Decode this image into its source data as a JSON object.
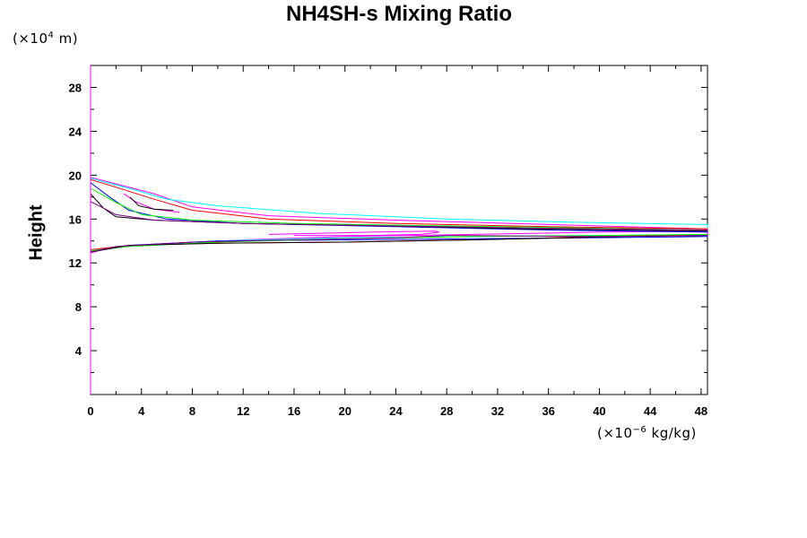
{
  "chart_data": {
    "type": "line",
    "title": "NH4SH-s Mixing Ratio",
    "ylabel": "Height",
    "y_unit": {
      "prefix": "(×10",
      "exp": "4",
      "suffix": " m)"
    },
    "x_unit": {
      "prefix": "(×10",
      "exp": "−6",
      "suffix": " kg/kg)"
    },
    "xlim": [
      0,
      48.5
    ],
    "ylim": [
      0,
      30
    ],
    "xticks": [
      0,
      4,
      8,
      12,
      16,
      20,
      24,
      28,
      32,
      36,
      40,
      44,
      48
    ],
    "yticks": [
      4,
      8,
      12,
      16,
      20,
      24,
      28
    ],
    "series": [
      {
        "color": "#ff00ff",
        "points": [
          [
            0,
            19.8
          ],
          [
            2,
            19.2
          ],
          [
            5,
            18.3
          ],
          [
            8,
            17.1
          ],
          [
            14,
            16.3
          ],
          [
            24,
            15.9
          ],
          [
            36,
            15.5
          ],
          [
            48.5,
            15.1
          ],
          [
            48.5,
            14.9
          ],
          [
            40,
            14.8
          ],
          [
            30,
            14.6
          ],
          [
            20,
            14.4
          ],
          [
            12,
            14.1
          ],
          [
            5,
            13.7
          ],
          [
            1.5,
            13.4
          ],
          [
            0,
            12.9
          ]
        ]
      },
      {
        "color": "#00ffff",
        "points": [
          [
            0,
            19.7
          ],
          [
            3,
            18.8
          ],
          [
            6,
            17.8
          ],
          [
            10,
            17.2
          ],
          [
            18,
            16.5
          ],
          [
            28,
            16.0
          ],
          [
            38,
            15.7
          ],
          [
            48.5,
            15.5
          ],
          [
            48.5,
            14.5
          ],
          [
            40,
            14.5
          ],
          [
            30,
            14.4
          ],
          [
            20,
            14.3
          ],
          [
            10,
            14.0
          ],
          [
            3,
            13.6
          ],
          [
            0,
            13.1
          ]
        ]
      },
      {
        "color": "#ff0000",
        "points": [
          [
            0,
            19.6
          ],
          [
            2,
            18.9
          ],
          [
            5,
            17.8
          ],
          [
            8,
            16.8
          ],
          [
            14,
            16.0
          ],
          [
            24,
            15.6
          ],
          [
            36,
            15.3
          ],
          [
            48.5,
            15.1
          ],
          [
            48.5,
            14.6
          ],
          [
            40,
            14.4
          ],
          [
            30,
            14.1
          ],
          [
            20,
            13.9
          ],
          [
            10,
            13.8
          ],
          [
            3,
            13.6
          ],
          [
            0,
            13.2
          ]
        ]
      },
      {
        "color": "#0000ff",
        "points": [
          [
            0,
            19.3
          ],
          [
            1.5,
            18.0
          ],
          [
            3,
            16.8
          ],
          [
            6,
            16.0
          ],
          [
            12,
            15.6
          ],
          [
            24,
            15.3
          ],
          [
            36,
            15.0
          ],
          [
            48.5,
            14.8
          ],
          [
            48.5,
            14.4
          ],
          [
            40,
            14.3
          ],
          [
            30,
            14.2
          ],
          [
            20,
            14.1
          ],
          [
            10,
            14.0
          ],
          [
            3,
            13.6
          ],
          [
            0,
            13.0
          ]
        ]
      },
      {
        "color": "#00ff00",
        "points": [
          [
            0,
            18.8
          ],
          [
            2,
            17.5
          ],
          [
            4,
            16.4
          ],
          [
            8,
            15.9
          ],
          [
            16,
            15.6
          ],
          [
            26,
            15.4
          ],
          [
            38,
            15.2
          ],
          [
            48.5,
            15.0
          ],
          [
            48.5,
            14.6
          ],
          [
            40,
            14.5
          ],
          [
            30,
            14.4
          ],
          [
            20,
            14.2
          ],
          [
            10,
            13.9
          ],
          [
            3,
            13.5
          ],
          [
            0,
            13.1
          ]
        ]
      },
      {
        "color": "#000000",
        "points": [
          [
            0,
            18.3
          ],
          [
            1,
            17.0
          ],
          [
            2,
            16.2
          ],
          [
            5,
            15.9
          ],
          [
            12,
            15.6
          ],
          [
            22,
            15.4
          ],
          [
            34,
            15.1
          ],
          [
            48.5,
            14.9
          ],
          [
            48.5,
            14.5
          ],
          [
            42,
            14.4
          ],
          [
            30,
            14.1
          ],
          [
            20,
            13.9
          ],
          [
            10,
            13.8
          ],
          [
            3,
            13.6
          ],
          [
            0,
            13.0
          ]
        ]
      },
      {
        "color": "#800080",
        "points": [
          [
            0,
            17.6
          ],
          [
            2,
            16.4
          ],
          [
            5,
            15.9
          ],
          [
            12,
            15.6
          ],
          [
            22,
            15.4
          ],
          [
            34,
            15.2
          ],
          [
            48.5,
            15.0
          ],
          [
            48.5,
            14.5
          ],
          [
            40,
            14.4
          ],
          [
            28,
            14.5
          ],
          [
            24,
            14.3
          ],
          [
            16,
            14.1
          ],
          [
            8,
            13.9
          ],
          [
            2,
            13.5
          ],
          [
            0,
            13.0
          ]
        ]
      },
      {
        "color": "#ff00ff",
        "points": [
          [
            14,
            14.6
          ],
          [
            22,
            14.8
          ],
          [
            27,
            14.9
          ],
          [
            27.4,
            14.8
          ],
          [
            26,
            14.6
          ],
          [
            22,
            14.5
          ],
          [
            16,
            14.5
          ]
        ]
      },
      {
        "color": "#ff00ff",
        "points": [
          [
            2.6,
            18.3
          ],
          [
            3.5,
            17.6
          ],
          [
            5,
            16.9
          ],
          [
            7,
            16.6
          ]
        ]
      },
      {
        "color": "#000000",
        "points": [
          [
            3.1,
            18.0
          ],
          [
            3.8,
            17.2
          ],
          [
            5,
            16.9
          ],
          [
            6.5,
            16.8
          ]
        ]
      }
    ]
  }
}
